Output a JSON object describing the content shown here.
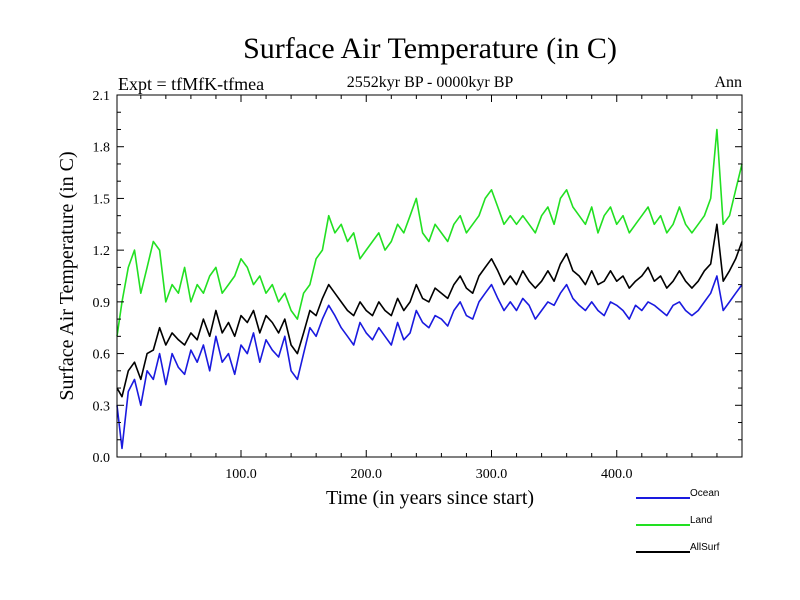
{
  "chart_data": {
    "type": "line",
    "title": "Surface Air Temperature (in C)",
    "subtitle": "2552kyr BP - 0000kyr BP",
    "left_label": "Expt = tfMfK-tfmea",
    "right_label": "Ann",
    "xlabel": "Time (in years since start)",
    "ylabel": "Surface Air Temperature (in C)",
    "xlim": [
      1,
      500
    ],
    "ylim": [
      0.0,
      2.1
    ],
    "x_ticks": [
      100,
      200,
      300,
      400
    ],
    "x_tick_labels": [
      "100.0",
      "200.0",
      "300.0",
      "400.0"
    ],
    "y_ticks": [
      0.0,
      0.3,
      0.6,
      0.9,
      1.2,
      1.5,
      1.8,
      2.1
    ],
    "y_tick_labels": [
      "0.0",
      "0.3",
      "0.6",
      "0.9",
      "1.2",
      "1.5",
      "1.8",
      "2.1"
    ],
    "legend_placement": "bottom-right, below plot",
    "series": [
      {
        "name": "Ocean",
        "color": "#1a1adf",
        "points": [
          [
            1,
            0.3
          ],
          [
            5,
            0.05
          ],
          [
            10,
            0.38
          ],
          [
            15,
            0.45
          ],
          [
            20,
            0.3
          ],
          [
            25,
            0.5
          ],
          [
            30,
            0.45
          ],
          [
            35,
            0.6
          ],
          [
            40,
            0.42
          ],
          [
            45,
            0.6
          ],
          [
            50,
            0.52
          ],
          [
            55,
            0.48
          ],
          [
            60,
            0.62
          ],
          [
            65,
            0.55
          ],
          [
            70,
            0.65
          ],
          [
            75,
            0.5
          ],
          [
            80,
            0.7
          ],
          [
            85,
            0.55
          ],
          [
            90,
            0.6
          ],
          [
            95,
            0.48
          ],
          [
            100,
            0.65
          ],
          [
            105,
            0.6
          ],
          [
            110,
            0.72
          ],
          [
            115,
            0.55
          ],
          [
            120,
            0.68
          ],
          [
            125,
            0.62
          ],
          [
            130,
            0.58
          ],
          [
            135,
            0.7
          ],
          [
            140,
            0.5
          ],
          [
            145,
            0.45
          ],
          [
            150,
            0.6
          ],
          [
            155,
            0.75
          ],
          [
            160,
            0.7
          ],
          [
            165,
            0.8
          ],
          [
            170,
            0.88
          ],
          [
            175,
            0.82
          ],
          [
            180,
            0.75
          ],
          [
            185,
            0.7
          ],
          [
            190,
            0.65
          ],
          [
            195,
            0.78
          ],
          [
            200,
            0.72
          ],
          [
            205,
            0.68
          ],
          [
            210,
            0.75
          ],
          [
            215,
            0.7
          ],
          [
            220,
            0.65
          ],
          [
            225,
            0.78
          ],
          [
            230,
            0.68
          ],
          [
            235,
            0.72
          ],
          [
            240,
            0.85
          ],
          [
            245,
            0.78
          ],
          [
            250,
            0.75
          ],
          [
            255,
            0.82
          ],
          [
            260,
            0.8
          ],
          [
            265,
            0.76
          ],
          [
            270,
            0.85
          ],
          [
            275,
            0.9
          ],
          [
            280,
            0.82
          ],
          [
            285,
            0.8
          ],
          [
            290,
            0.9
          ],
          [
            295,
            0.95
          ],
          [
            300,
            1.0
          ],
          [
            305,
            0.92
          ],
          [
            310,
            0.85
          ],
          [
            315,
            0.9
          ],
          [
            320,
            0.85
          ],
          [
            325,
            0.92
          ],
          [
            330,
            0.88
          ],
          [
            335,
            0.8
          ],
          [
            340,
            0.85
          ],
          [
            345,
            0.9
          ],
          [
            350,
            0.88
          ],
          [
            355,
            0.95
          ],
          [
            360,
            1.0
          ],
          [
            365,
            0.92
          ],
          [
            370,
            0.88
          ],
          [
            375,
            0.85
          ],
          [
            380,
            0.9
          ],
          [
            385,
            0.85
          ],
          [
            390,
            0.82
          ],
          [
            395,
            0.9
          ],
          [
            400,
            0.88
          ],
          [
            405,
            0.85
          ],
          [
            410,
            0.8
          ],
          [
            415,
            0.88
          ],
          [
            420,
            0.85
          ],
          [
            425,
            0.9
          ],
          [
            430,
            0.88
          ],
          [
            435,
            0.85
          ],
          [
            440,
            0.82
          ],
          [
            445,
            0.88
          ],
          [
            450,
            0.9
          ],
          [
            455,
            0.85
          ],
          [
            460,
            0.82
          ],
          [
            465,
            0.85
          ],
          [
            470,
            0.9
          ],
          [
            475,
            0.95
          ],
          [
            480,
            1.05
          ],
          [
            485,
            0.85
          ],
          [
            490,
            0.9
          ],
          [
            495,
            0.95
          ],
          [
            500,
            1.0
          ]
        ]
      },
      {
        "name": "Land",
        "color": "#22e022",
        "points": [
          [
            1,
            0.7
          ],
          [
            5,
            0.9
          ],
          [
            10,
            1.1
          ],
          [
            15,
            1.2
          ],
          [
            20,
            0.95
          ],
          [
            25,
            1.1
          ],
          [
            30,
            1.25
          ],
          [
            35,
            1.2
          ],
          [
            40,
            0.9
          ],
          [
            45,
            1.0
          ],
          [
            50,
            0.95
          ],
          [
            55,
            1.1
          ],
          [
            60,
            0.9
          ],
          [
            65,
            1.0
          ],
          [
            70,
            0.95
          ],
          [
            75,
            1.05
          ],
          [
            80,
            1.1
          ],
          [
            85,
            0.95
          ],
          [
            90,
            1.0
          ],
          [
            95,
            1.05
          ],
          [
            100,
            1.15
          ],
          [
            105,
            1.1
          ],
          [
            110,
            1.0
          ],
          [
            115,
            1.05
          ],
          [
            120,
            0.95
          ],
          [
            125,
            1.0
          ],
          [
            130,
            0.9
          ],
          [
            135,
            0.95
          ],
          [
            140,
            0.85
          ],
          [
            145,
            0.8
          ],
          [
            150,
            0.95
          ],
          [
            155,
            1.0
          ],
          [
            160,
            1.15
          ],
          [
            165,
            1.2
          ],
          [
            170,
            1.4
          ],
          [
            175,
            1.3
          ],
          [
            180,
            1.35
          ],
          [
            185,
            1.25
          ],
          [
            190,
            1.3
          ],
          [
            195,
            1.15
          ],
          [
            200,
            1.2
          ],
          [
            205,
            1.25
          ],
          [
            210,
            1.3
          ],
          [
            215,
            1.2
          ],
          [
            220,
            1.25
          ],
          [
            225,
            1.35
          ],
          [
            230,
            1.3
          ],
          [
            235,
            1.4
          ],
          [
            240,
            1.5
          ],
          [
            245,
            1.3
          ],
          [
            250,
            1.25
          ],
          [
            255,
            1.35
          ],
          [
            260,
            1.3
          ],
          [
            265,
            1.25
          ],
          [
            270,
            1.35
          ],
          [
            275,
            1.4
          ],
          [
            280,
            1.3
          ],
          [
            285,
            1.35
          ],
          [
            290,
            1.4
          ],
          [
            295,
            1.5
          ],
          [
            300,
            1.55
          ],
          [
            305,
            1.45
          ],
          [
            310,
            1.35
          ],
          [
            315,
            1.4
          ],
          [
            320,
            1.35
          ],
          [
            325,
            1.4
          ],
          [
            330,
            1.35
          ],
          [
            335,
            1.3
          ],
          [
            340,
            1.4
          ],
          [
            345,
            1.45
          ],
          [
            350,
            1.35
          ],
          [
            355,
            1.5
          ],
          [
            360,
            1.55
          ],
          [
            365,
            1.45
          ],
          [
            370,
            1.4
          ],
          [
            375,
            1.35
          ],
          [
            380,
            1.45
          ],
          [
            385,
            1.3
          ],
          [
            390,
            1.4
          ],
          [
            395,
            1.45
          ],
          [
            400,
            1.35
          ],
          [
            405,
            1.4
          ],
          [
            410,
            1.3
          ],
          [
            415,
            1.35
          ],
          [
            420,
            1.4
          ],
          [
            425,
            1.45
          ],
          [
            430,
            1.35
          ],
          [
            435,
            1.4
          ],
          [
            440,
            1.3
          ],
          [
            445,
            1.35
          ],
          [
            450,
            1.45
          ],
          [
            455,
            1.35
          ],
          [
            460,
            1.3
          ],
          [
            465,
            1.35
          ],
          [
            470,
            1.4
          ],
          [
            475,
            1.5
          ],
          [
            480,
            1.9
          ],
          [
            485,
            1.35
          ],
          [
            490,
            1.4
          ],
          [
            495,
            1.55
          ],
          [
            500,
            1.7
          ]
        ]
      },
      {
        "name": "AllSurf",
        "color": "#000000",
        "points": [
          [
            1,
            0.4
          ],
          [
            5,
            0.35
          ],
          [
            10,
            0.5
          ],
          [
            15,
            0.55
          ],
          [
            20,
            0.45
          ],
          [
            25,
            0.6
          ],
          [
            30,
            0.62
          ],
          [
            35,
            0.75
          ],
          [
            40,
            0.65
          ],
          [
            45,
            0.72
          ],
          [
            50,
            0.68
          ],
          [
            55,
            0.65
          ],
          [
            60,
            0.72
          ],
          [
            65,
            0.68
          ],
          [
            70,
            0.8
          ],
          [
            75,
            0.7
          ],
          [
            80,
            0.85
          ],
          [
            85,
            0.72
          ],
          [
            90,
            0.78
          ],
          [
            95,
            0.7
          ],
          [
            100,
            0.82
          ],
          [
            105,
            0.78
          ],
          [
            110,
            0.85
          ],
          [
            115,
            0.72
          ],
          [
            120,
            0.82
          ],
          [
            125,
            0.78
          ],
          [
            130,
            0.72
          ],
          [
            135,
            0.8
          ],
          [
            140,
            0.65
          ],
          [
            145,
            0.6
          ],
          [
            150,
            0.72
          ],
          [
            155,
            0.85
          ],
          [
            160,
            0.82
          ],
          [
            165,
            0.92
          ],
          [
            170,
            1.0
          ],
          [
            175,
            0.95
          ],
          [
            180,
            0.9
          ],
          [
            185,
            0.85
          ],
          [
            190,
            0.82
          ],
          [
            195,
            0.9
          ],
          [
            200,
            0.85
          ],
          [
            205,
            0.82
          ],
          [
            210,
            0.9
          ],
          [
            215,
            0.85
          ],
          [
            220,
            0.82
          ],
          [
            225,
            0.92
          ],
          [
            230,
            0.85
          ],
          [
            235,
            0.9
          ],
          [
            240,
            1.0
          ],
          [
            245,
            0.92
          ],
          [
            250,
            0.9
          ],
          [
            255,
            0.98
          ],
          [
            260,
            0.95
          ],
          [
            265,
            0.92
          ],
          [
            270,
            1.0
          ],
          [
            275,
            1.05
          ],
          [
            280,
            0.98
          ],
          [
            285,
            0.95
          ],
          [
            290,
            1.05
          ],
          [
            295,
            1.1
          ],
          [
            300,
            1.15
          ],
          [
            305,
            1.08
          ],
          [
            310,
            1.0
          ],
          [
            315,
            1.05
          ],
          [
            320,
            1.0
          ],
          [
            325,
            1.08
          ],
          [
            330,
            1.02
          ],
          [
            335,
            0.98
          ],
          [
            340,
            1.02
          ],
          [
            345,
            1.08
          ],
          [
            350,
            1.02
          ],
          [
            355,
            1.12
          ],
          [
            360,
            1.18
          ],
          [
            365,
            1.08
          ],
          [
            370,
            1.05
          ],
          [
            375,
            1.0
          ],
          [
            380,
            1.08
          ],
          [
            385,
            1.0
          ],
          [
            390,
            1.02
          ],
          [
            395,
            1.08
          ],
          [
            400,
            1.02
          ],
          [
            405,
            1.05
          ],
          [
            410,
            0.98
          ],
          [
            415,
            1.02
          ],
          [
            420,
            1.05
          ],
          [
            425,
            1.1
          ],
          [
            430,
            1.02
          ],
          [
            435,
            1.05
          ],
          [
            440,
            0.98
          ],
          [
            445,
            1.02
          ],
          [
            450,
            1.08
          ],
          [
            455,
            1.02
          ],
          [
            460,
            0.98
          ],
          [
            465,
            1.02
          ],
          [
            470,
            1.08
          ],
          [
            475,
            1.12
          ],
          [
            480,
            1.35
          ],
          [
            485,
            1.02
          ],
          [
            490,
            1.08
          ],
          [
            495,
            1.15
          ],
          [
            500,
            1.25
          ]
        ]
      }
    ]
  }
}
